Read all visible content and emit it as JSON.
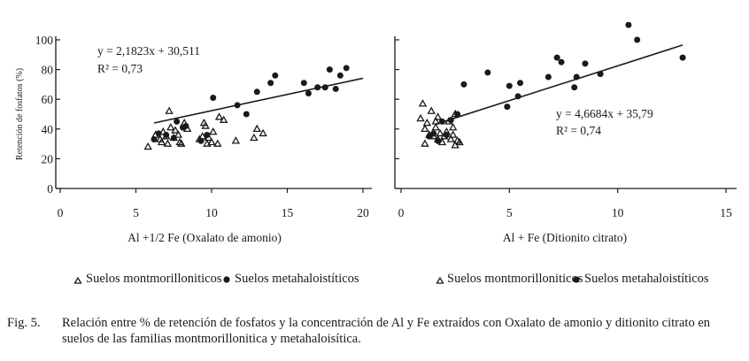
{
  "figure": {
    "label": "Fig. 5.",
    "caption": "Relación entre % de retención de fosfatos y la concentración de Al y Fe extraídos con Oxalato de amonio y ditionito citrato en suelos de las familias montmorillonitica y metahaloisítica."
  },
  "chart_data": [
    {
      "type": "scatter",
      "title": "",
      "xlabel": "Al +1/2 Fe (Oxalato de amonio)",
      "ylabel": "Retención de fosfatos (%)",
      "xlim": [
        0,
        20
      ],
      "ylim": [
        0,
        100
      ],
      "xticks": [
        0,
        5,
        10,
        15,
        20
      ],
      "yticks": [
        0,
        20,
        40,
        60,
        80,
        100
      ],
      "grid": false,
      "annotation": {
        "equation": "y = 2,1823x + 30,511",
        "r2": "R² = 0,73"
      },
      "trendline": {
        "slope": 2.1823,
        "intercept": 30.511,
        "x_range": [
          6.2,
          20
        ]
      },
      "legend": [
        "Suelos montmorilloniticos",
        "Suelos metahaloistíticos"
      ],
      "legend_position": "bottom",
      "series": [
        {
          "name": "Suelos montmorilloniticos",
          "marker": "triangle-open",
          "points": [
            [
              5.8,
              28
            ],
            [
              6.3,
              36
            ],
            [
              6.6,
              33
            ],
            [
              6.7,
              31
            ],
            [
              6.8,
              38
            ],
            [
              7.0,
              35
            ],
            [
              7.1,
              30
            ],
            [
              7.2,
              52
            ],
            [
              7.3,
              41
            ],
            [
              7.5,
              34
            ],
            [
              7.6,
              39
            ],
            [
              7.8,
              36
            ],
            [
              7.9,
              31
            ],
            [
              8.0,
              30
            ],
            [
              8.2,
              44
            ],
            [
              8.4,
              40
            ],
            [
              9.2,
              33
            ],
            [
              9.4,
              35
            ],
            [
              9.5,
              44
            ],
            [
              9.6,
              42
            ],
            [
              9.7,
              30
            ],
            [
              9.8,
              34
            ],
            [
              10.0,
              31
            ],
            [
              10.1,
              38
            ],
            [
              10.4,
              30
            ],
            [
              10.5,
              48
            ],
            [
              10.8,
              46
            ],
            [
              11.6,
              32
            ],
            [
              12.8,
              34
            ],
            [
              13.0,
              40
            ],
            [
              13.4,
              37
            ]
          ]
        },
        {
          "name": "Suelos metahaloistíticos",
          "marker": "circle-filled",
          "points": [
            [
              6.2,
              33
            ],
            [
              6.5,
              37
            ],
            [
              7.0,
              36
            ],
            [
              7.5,
              34
            ],
            [
              7.7,
              45
            ],
            [
              8.1,
              41
            ],
            [
              8.3,
              42
            ],
            [
              9.3,
              32
            ],
            [
              9.7,
              36
            ],
            [
              10.1,
              61
            ],
            [
              11.7,
              56
            ],
            [
              12.3,
              50
            ],
            [
              13.0,
              65
            ],
            [
              13.9,
              71
            ],
            [
              14.2,
              76
            ],
            [
              16.1,
              71
            ],
            [
              16.4,
              64
            ],
            [
              17.0,
              68
            ],
            [
              17.5,
              68
            ],
            [
              17.8,
              80
            ],
            [
              18.2,
              67
            ],
            [
              18.5,
              76
            ],
            [
              18.9,
              81
            ]
          ]
        }
      ]
    },
    {
      "type": "scatter",
      "title": "",
      "xlabel": "Al + Fe  (Ditionito citrato)",
      "ylabel": "",
      "xlim": [
        0,
        15
      ],
      "ylim": [
        0,
        100
      ],
      "xticks": [
        0,
        5,
        10,
        15
      ],
      "yticks": [
        0,
        20,
        40,
        60,
        80,
        100
      ],
      "grid": false,
      "annotation": {
        "equation": "y = 4,6684x + 35,79",
        "r2": "R² = 0,74"
      },
      "trendline": {
        "slope": 4.6684,
        "intercept": 35.79,
        "x_range": [
          1.6,
          13
        ]
      },
      "legend": [
        "Suelos montmorilloniticos",
        "Suelos metahaloistíticos"
      ],
      "legend_position": "bottom",
      "series": [
        {
          "name": "Suelos montmorilloniticos",
          "marker": "triangle-open",
          "points": [
            [
              0.9,
              47
            ],
            [
              1.0,
              57
            ],
            [
              1.1,
              30
            ],
            [
              1.1,
              40
            ],
            [
              1.2,
              44
            ],
            [
              1.3,
              36
            ],
            [
              1.4,
              52
            ],
            [
              1.5,
              35
            ],
            [
              1.6,
              41
            ],
            [
              1.6,
              45
            ],
            [
              1.7,
              33
            ],
            [
              1.7,
              48
            ],
            [
              1.8,
              37
            ],
            [
              1.9,
              31
            ],
            [
              2.0,
              35
            ],
            [
              2.1,
              38
            ],
            [
              2.2,
              45
            ],
            [
              2.3,
              33
            ],
            [
              2.4,
              36
            ],
            [
              2.4,
              41
            ],
            [
              2.5,
              29
            ],
            [
              2.5,
              50
            ],
            [
              2.6,
              32
            ],
            [
              2.7,
              31
            ]
          ]
        },
        {
          "name": "Suelos metahaloistíticos",
          "marker": "circle-filled",
          "points": [
            [
              1.3,
              35
            ],
            [
              1.5,
              37
            ],
            [
              1.7,
              32
            ],
            [
              1.9,
              45
            ],
            [
              2.1,
              36
            ],
            [
              2.3,
              46
            ],
            [
              2.6,
              50
            ],
            [
              2.9,
              70
            ],
            [
              4.0,
              78
            ],
            [
              4.9,
              55
            ],
            [
              5.0,
              69
            ],
            [
              5.4,
              62
            ],
            [
              5.5,
              71
            ],
            [
              6.8,
              75
            ],
            [
              7.2,
              88
            ],
            [
              7.4,
              85
            ],
            [
              8.0,
              68
            ],
            [
              8.1,
              75
            ],
            [
              8.5,
              84
            ],
            [
              9.2,
              77
            ],
            [
              10.5,
              110
            ],
            [
              10.9,
              100
            ],
            [
              13.0,
              88
            ]
          ]
        }
      ]
    }
  ]
}
